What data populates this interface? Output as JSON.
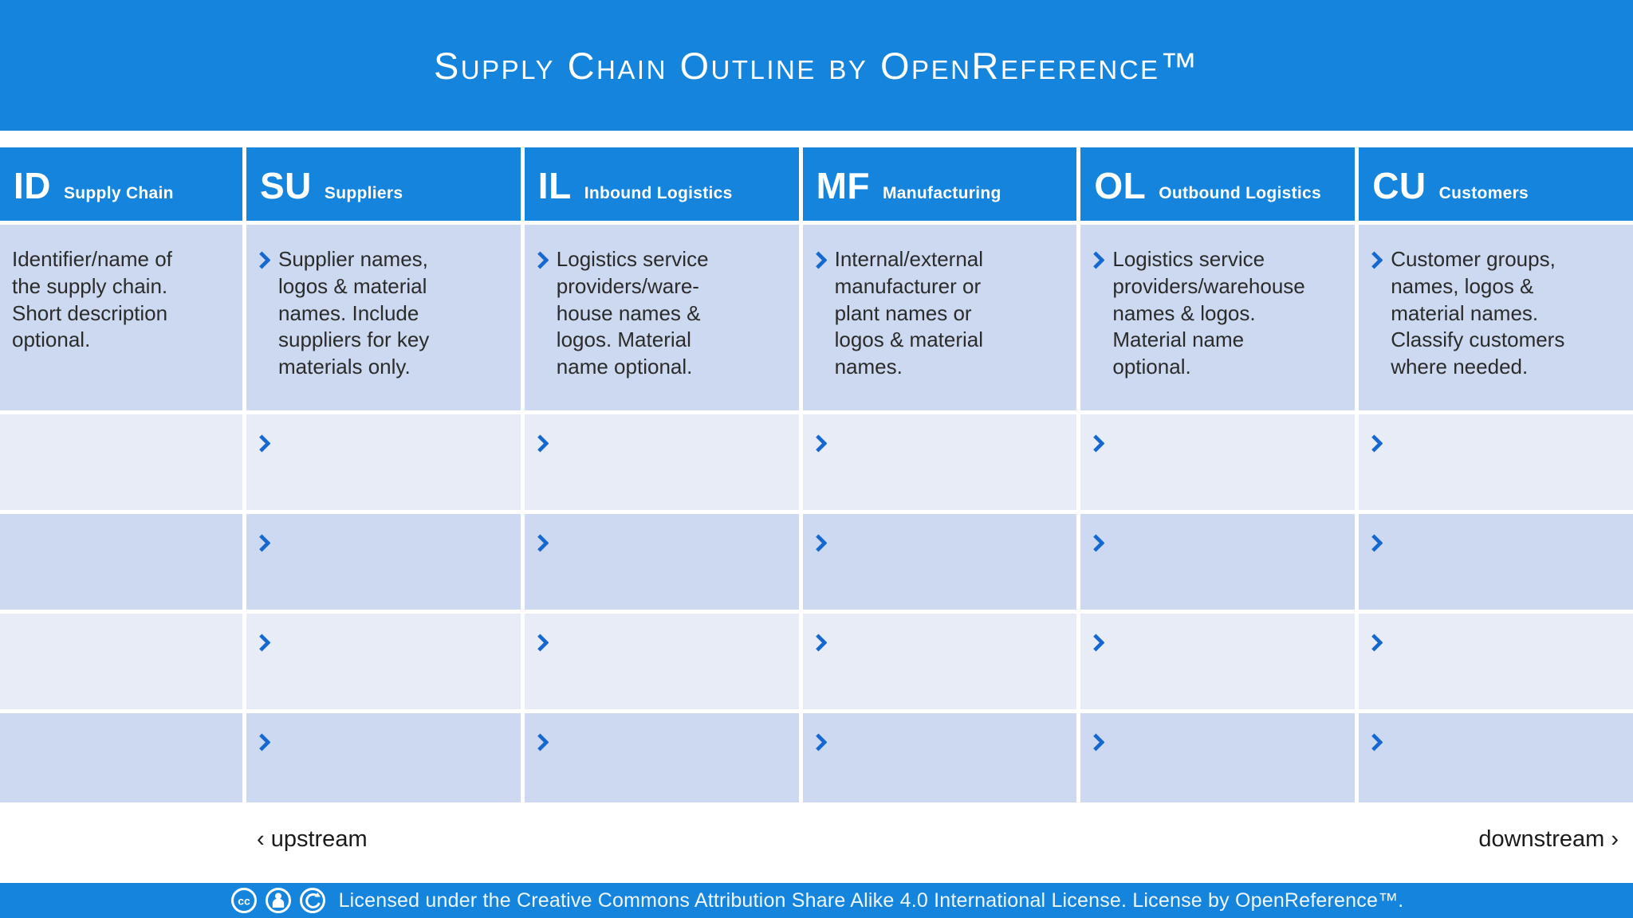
{
  "title": "Supply Chain Outline by OpenReference™",
  "table": {
    "columns": [
      {
        "code": "ID",
        "label": "Supply Chain",
        "description": "Identifier/name of the supply chain. Short description optional.",
        "bullet": false
      },
      {
        "code": "SU",
        "label": "Suppliers",
        "description": "Supplier names, logos & material names. Include suppliers for key materials only.",
        "bullet": true
      },
      {
        "code": "IL",
        "label": "Inbound Logistics",
        "description": "Logistics service providers/ware-house names & logos. Material name optional.",
        "bullet": true
      },
      {
        "code": "MF",
        "label": "Manufacturing",
        "description": "Internal/external manufacturer or plant names or logos & material names.",
        "bullet": true
      },
      {
        "code": "OL",
        "label": "Outbound Logistics",
        "description": "Logistics service providers/warehouse names & logos. Material name optional.",
        "bullet": true
      },
      {
        "code": "CU",
        "label": "Customers",
        "description": "Customer groups, names, logos & material names. Classify customers where needed.",
        "bullet": true
      }
    ],
    "empty_row_count": 4
  },
  "flow_labels": {
    "upstream": "‹ upstream",
    "downstream": "downstream ›"
  },
  "footer": {
    "license_text": "Licensed under the Creative Commons Attribution Share Alike 4.0 International License. License by OpenReference™.",
    "icons": [
      "cc-icon",
      "cc-by-icon",
      "cc-sa-icon"
    ]
  },
  "colors": {
    "brand_blue": "#1584dc",
    "chevron_blue": "#1568cf",
    "row_light": "#e7ecf7",
    "row_dark": "#cdd9f0",
    "text_dark": "#2b2b2b"
  }
}
